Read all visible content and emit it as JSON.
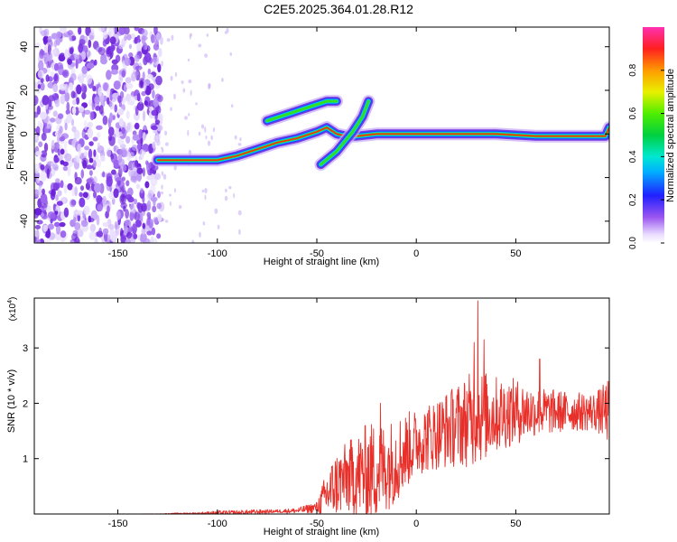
{
  "title": "C2E5.2025.364.01.28.R12",
  "colors": {
    "snr_line": "#e8302a",
    "spec_ridge": "#ff2a10",
    "spec_noise": "#7a2be0"
  },
  "chart_data": [
    {
      "type": "heatmap",
      "name": "spectrogram",
      "xlabel": "Height of straight line (km)",
      "ylabel": "Frequency (Hz)",
      "xlim": [
        -192,
        97
      ],
      "ylim": [
        -50,
        49
      ],
      "xticks": [
        -150,
        -100,
        -50,
        0,
        50
      ],
      "yticks": [
        -40,
        -20,
        0,
        20,
        40
      ],
      "colorbar": {
        "label": "Normalized spectral amplitude",
        "range": [
          0,
          1
        ],
        "ticks": [
          "0.0",
          "0.2",
          "0.4",
          "0.6",
          "0.8"
        ],
        "tick_values": [
          0,
          0.2,
          0.4,
          0.6,
          0.8
        ]
      },
      "noise_region_x": [
        -192,
        -128
      ],
      "ridges": [
        {
          "name": "main",
          "points": [
            [
              -130,
              -12
            ],
            [
              -115,
              -12
            ],
            [
              -100,
              -12
            ],
            [
              -90,
              -10
            ],
            [
              -80,
              -7
            ],
            [
              -70,
              -4
            ],
            [
              -60,
              -2
            ],
            [
              -50,
              1
            ],
            [
              -45,
              3
            ],
            [
              -40,
              0
            ],
            [
              -35,
              -1
            ],
            [
              -30,
              -1
            ],
            [
              -20,
              0
            ],
            [
              -10,
              0
            ],
            [
              0,
              0
            ],
            [
              20,
              0
            ],
            [
              40,
              0
            ],
            [
              60,
              -1
            ],
            [
              80,
              -1
            ],
            [
              95,
              -1
            ],
            [
              97,
              3
            ]
          ]
        },
        {
          "name": "upper-branch",
          "points": [
            [
              -75,
              6
            ],
            [
              -65,
              9
            ],
            [
              -55,
              12
            ],
            [
              -45,
              15
            ],
            [
              -40,
              15
            ]
          ]
        },
        {
          "name": "diagonal",
          "points": [
            [
              -48,
              -14
            ],
            [
              -40,
              -8
            ],
            [
              -32,
              1
            ],
            [
              -27,
              8
            ],
            [
              -24,
              15
            ]
          ]
        }
      ]
    },
    {
      "type": "line",
      "name": "snr",
      "xlabel": "Height of straight line (km)",
      "ylabel": "SNR (10 * v/v)",
      "multiplier_label": "(x10",
      "multiplier_exp": "4",
      "xlim": [
        -192,
        97
      ],
      "ylim": [
        0,
        3.9
      ],
      "xticks": [
        -150,
        -100,
        -50,
        0,
        50
      ],
      "yticks": [
        1,
        2,
        3
      ],
      "envelope": {
        "x": [
          -192,
          -130,
          -120,
          -110,
          -100,
          -90,
          -80,
          -70,
          -60,
          -50,
          -45,
          -40,
          -35,
          -30,
          -25,
          -20,
          -15,
          -10,
          -5,
          0,
          10,
          20,
          30,
          40,
          50,
          60,
          70,
          80,
          90,
          97
        ],
        "base": [
          0,
          0,
          0.01,
          0.01,
          0.02,
          0.02,
          0.04,
          0.05,
          0.06,
          0.12,
          0.35,
          0.55,
          0.65,
          0.7,
          0.75,
          0.8,
          0.85,
          1.0,
          1.15,
          1.3,
          1.45,
          1.6,
          1.75,
          1.8,
          1.85,
          1.85,
          1.85,
          1.85,
          1.85,
          1.85
        ],
        "amp": [
          0,
          0.003,
          0.01,
          0.02,
          0.04,
          0.05,
          0.04,
          0.03,
          0.05,
          0.1,
          0.45,
          0.6,
          0.65,
          0.75,
          0.9,
          0.9,
          0.8,
          0.8,
          0.7,
          0.6,
          0.65,
          0.75,
          0.9,
          0.7,
          0.6,
          0.45,
          0.4,
          0.35,
          0.35,
          0.6
        ]
      },
      "peaks": [
        [
          31,
          3.85
        ],
        [
          29,
          3.1
        ],
        [
          34,
          3.15
        ],
        [
          -18,
          2.0
        ],
        [
          62,
          2.8
        ]
      ]
    }
  ]
}
